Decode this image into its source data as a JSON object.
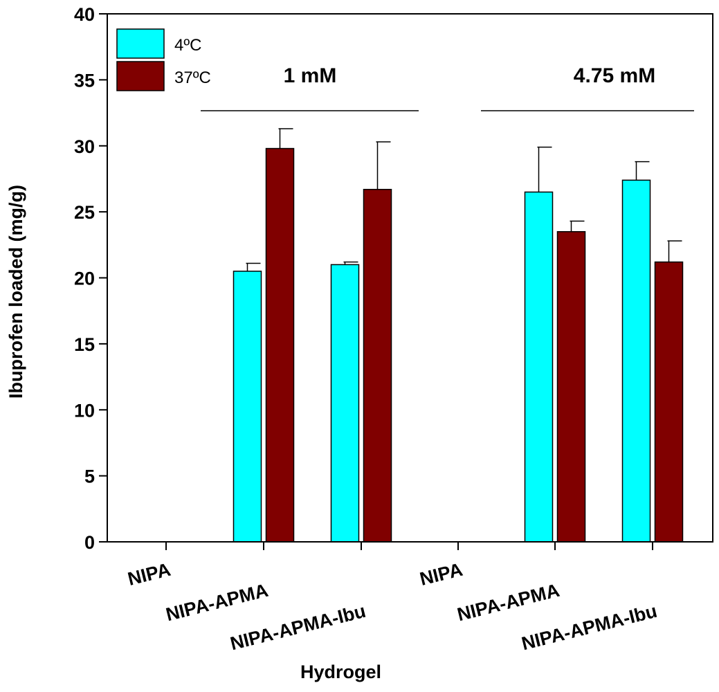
{
  "chart_data": {
    "type": "bar",
    "xlabel": "Hydrogel",
    "ylabel": "Ibuprofen loaded (mg/g)",
    "ylim": [
      0,
      40
    ],
    "yticks": [
      0,
      5,
      10,
      15,
      20,
      25,
      30,
      35,
      40
    ],
    "categories": [
      "NIPA",
      "NIPA-APMA",
      "NIPA-APMA-Ibu",
      "NIPA",
      "NIPA-APMA",
      "NIPA-APMA-Ibu"
    ],
    "series": [
      {
        "name": "4ºC",
        "color": "#00ffff",
        "values": [
          0,
          20.5,
          21.0,
          0,
          26.5,
          27.4
        ],
        "errors": [
          0,
          0.6,
          0.2,
          0,
          3.4,
          1.4
        ]
      },
      {
        "name": "37ºC",
        "color": "#800000",
        "values": [
          0,
          29.8,
          26.7,
          0,
          23.5,
          21.2
        ],
        "errors": [
          0,
          1.5,
          3.6,
          0,
          0.8,
          1.6
        ]
      }
    ],
    "groups": [
      {
        "label": "1 mM",
        "categories": [
          0,
          1,
          2
        ]
      },
      {
        "label": "4.75 mM",
        "categories": [
          3,
          4,
          5
        ]
      }
    ],
    "legend_position": "top-left",
    "grid": false
  }
}
